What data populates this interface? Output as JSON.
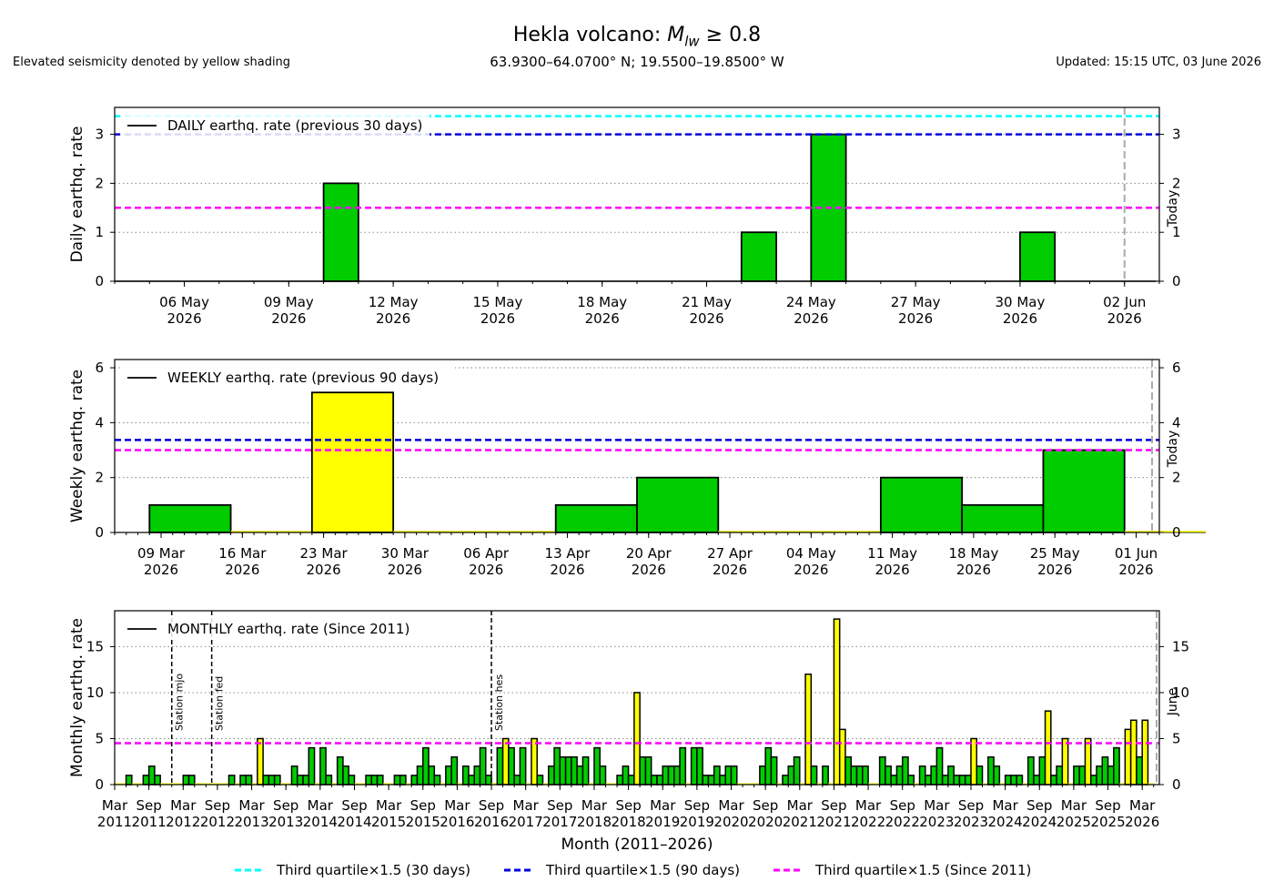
{
  "header": {
    "title": "Hekla volcano: M_lw ≥ 0.8",
    "title_main": "Hekla volcano: ",
    "title_math_M": "M",
    "title_math_sub": "lw",
    "title_math_rest": " ≥ 0.8",
    "coords": "63.9300–64.0700° N; 19.5500–19.8500° W",
    "note_left": "Elevated seismicity denoted by yellow shading",
    "note_right": "Updated: 15:15 UTC, 03 June 2026"
  },
  "colors": {
    "normal": "#00cc00",
    "elevated": "#ffff00",
    "cyan": "#00ffff",
    "blue": "#0000dd",
    "magenta": "#ff00ff",
    "today": "#aaaaaa",
    "station": "#000000"
  },
  "legend": [
    {
      "label": "Third quartile×1.5 (30 days)",
      "color": "#00ffff"
    },
    {
      "label": "Third quartile×1.5 (90 days)",
      "color": "#0000dd"
    },
    {
      "label": "Third quartile×1.5 (Since 2011)",
      "color": "#ff00ff"
    }
  ],
  "chart_data": [
    {
      "type": "bar",
      "legend_label": "DAILY earthq. rate (previous 30 days)",
      "ylabel": "Daily earthq. rate",
      "xlabel": "",
      "x_start": "2026-05-04",
      "x": [
        "2026-05-10",
        "2026-05-22",
        "2026-05-24",
        "2026-05-30"
      ],
      "values": [
        2,
        1,
        3,
        1
      ],
      "elevated": [
        false,
        false,
        false,
        false
      ],
      "xlim": [
        "2026-05-04",
        "2026-06-03"
      ],
      "ylim": [
        0,
        3.55
      ],
      "yticks": [
        0,
        1,
        2,
        3
      ],
      "xtick_labels": [
        [
          "06 May",
          "2026"
        ],
        [
          "09 May",
          "2026"
        ],
        [
          "12 May",
          "2026"
        ],
        [
          "15 May",
          "2026"
        ],
        [
          "18 May",
          "2026"
        ],
        [
          "21 May",
          "2026"
        ],
        [
          "24 May",
          "2026"
        ],
        [
          "27 May",
          "2026"
        ],
        [
          "30 May",
          "2026"
        ],
        [
          "02 Jun",
          "2026"
        ]
      ],
      "thresholds": [
        {
          "name": "30 days",
          "value": 3.37,
          "color": "#00ffff"
        },
        {
          "name": "90 days",
          "value": 3.0,
          "color": "#0000dd"
        },
        {
          "name": "Since 2011",
          "value": 1.5,
          "color": "#ff00ff"
        }
      ],
      "today_label": "Today",
      "grid": "y dotted"
    },
    {
      "type": "bar",
      "legend_label": "WEEKLY earthq. rate (previous 90 days)",
      "ylabel": "Weekly earthq. rate",
      "xlabel": "",
      "x_start": "2026-03-05",
      "week_starts": [
        "2026-03-08",
        "2026-03-15",
        "2026-03-22",
        "2026-03-29",
        "2026-04-05",
        "2026-04-12",
        "2026-04-19",
        "2026-04-26",
        "2026-05-03",
        "2026-05-10",
        "2026-05-17",
        "2026-05-24",
        "2026-05-31"
      ],
      "values": [
        1,
        0,
        5.1,
        0,
        0,
        1,
        2,
        0,
        0,
        2,
        1,
        3,
        0
      ],
      "elevated": [
        false,
        false,
        true,
        false,
        false,
        false,
        false,
        false,
        false,
        false,
        false,
        false,
        false
      ],
      "xlim": [
        "2026-03-05",
        "2026-06-03"
      ],
      "ylim": [
        0,
        6.3
      ],
      "yticks": [
        0,
        2,
        4,
        6
      ],
      "xtick_labels": [
        [
          "09 Mar",
          "2026"
        ],
        [
          "16 Mar",
          "2026"
        ],
        [
          "23 Mar",
          "2026"
        ],
        [
          "30 Mar",
          "2026"
        ],
        [
          "06 Apr",
          "2026"
        ],
        [
          "13 Apr",
          "2026"
        ],
        [
          "20 Apr",
          "2026"
        ],
        [
          "27 Apr",
          "2026"
        ],
        [
          "04 May",
          "2026"
        ],
        [
          "11 May",
          "2026"
        ],
        [
          "18 May",
          "2026"
        ],
        [
          "25 May",
          "2026"
        ],
        [
          "01 Jun",
          "2026"
        ]
      ],
      "thresholds": [
        {
          "name": "90 days",
          "value": 3.37,
          "color": "#0000dd"
        },
        {
          "name": "Since 2011",
          "value": 3.0,
          "color": "#ff00ff"
        }
      ],
      "today_label": "Today",
      "grid": "y dotted"
    },
    {
      "type": "bar",
      "legend_label": "MONTHLY earthq. rate (Since 2011)",
      "ylabel": "Monthly earthq. rate",
      "xlabel": "Month (2011–2026)",
      "x_start": "2011-03",
      "xlim": [
        "2011-03",
        "2026-06"
      ],
      "ylim": [
        0,
        18.9
      ],
      "yticks": [
        0,
        5,
        10,
        15
      ],
      "values": [
        0,
        0,
        1,
        0,
        0,
        1,
        2,
        1,
        0,
        0,
        0,
        0,
        1,
        1,
        0,
        0,
        0,
        0,
        0,
        0,
        1,
        0,
        1,
        1,
        0,
        5,
        1,
        1,
        1,
        0,
        0,
        2,
        1,
        1,
        4,
        0,
        4,
        1,
        0,
        3,
        2,
        1,
        0,
        0,
        1,
        1,
        1,
        0,
        0,
        1,
        1,
        0,
        1,
        2,
        4,
        2,
        1,
        0,
        2,
        3,
        0,
        2,
        1,
        2,
        4,
        1,
        0,
        4,
        5,
        4,
        1,
        4,
        0,
        5,
        1,
        0,
        2,
        4,
        3,
        3,
        3,
        2,
        3,
        0,
        4,
        2,
        0,
        0,
        1,
        2,
        1,
        10,
        3,
        3,
        1,
        1,
        2,
        2,
        2,
        4,
        0,
        4,
        4,
        1,
        1,
        2,
        1,
        2,
        2,
        0,
        0,
        0,
        0,
        2,
        4,
        3,
        0,
        1,
        2,
        3,
        0,
        12,
        2,
        0,
        2,
        0,
        18,
        6,
        3,
        2,
        2,
        2,
        0,
        0,
        3,
        2,
        1,
        2,
        3,
        1,
        0,
        2,
        1,
        2,
        4,
        1,
        2,
        1,
        1,
        1,
        5,
        2,
        0,
        3,
        2,
        0,
        1,
        1,
        1,
        0,
        3,
        1,
        3,
        8,
        1,
        2,
        5,
        0,
        2,
        2,
        5,
        1,
        2,
        3,
        2,
        4,
        0,
        6,
        7,
        3,
        7,
        0
      ],
      "elevated": [
        true,
        true,
        false,
        true,
        true,
        false,
        false,
        false,
        true,
        true,
        true,
        true,
        false,
        false,
        true,
        true,
        true,
        true,
        true,
        true,
        false,
        true,
        false,
        false,
        true,
        true,
        false,
        false,
        false,
        true,
        true,
        false,
        false,
        false,
        false,
        true,
        false,
        false,
        true,
        false,
        false,
        false,
        true,
        true,
        false,
        false,
        false,
        true,
        true,
        false,
        false,
        true,
        false,
        false,
        false,
        false,
        false,
        true,
        false,
        false,
        true,
        false,
        false,
        false,
        false,
        false,
        true,
        false,
        true,
        false,
        false,
        false,
        true,
        true,
        false,
        true,
        false,
        false,
        false,
        false,
        false,
        false,
        false,
        true,
        false,
        false,
        true,
        true,
        false,
        false,
        false,
        true,
        false,
        false,
        false,
        false,
        false,
        false,
        false,
        false,
        true,
        false,
        false,
        false,
        false,
        false,
        false,
        false,
        false,
        true,
        true,
        true,
        true,
        false,
        false,
        false,
        true,
        false,
        false,
        false,
        true,
        true,
        false,
        true,
        false,
        true,
        true,
        true,
        false,
        false,
        false,
        false,
        true,
        true,
        false,
        false,
        false,
        false,
        false,
        false,
        true,
        false,
        false,
        false,
        false,
        false,
        false,
        false,
        false,
        false,
        true,
        false,
        true,
        false,
        false,
        true,
        false,
        false,
        false,
        true,
        false,
        false,
        false,
        true,
        false,
        false,
        true,
        true,
        false,
        false,
        true,
        false,
        false,
        false,
        false,
        false,
        true,
        true,
        true,
        false,
        true,
        true
      ],
      "xtick_labels": [
        [
          "Mar",
          "2011"
        ],
        [
          "Sep",
          "2011"
        ],
        [
          "Mar",
          "2012"
        ],
        [
          "Sep",
          "2012"
        ],
        [
          "Mar",
          "2013"
        ],
        [
          "Sep",
          "2013"
        ],
        [
          "Mar",
          "2014"
        ],
        [
          "Sep",
          "2014"
        ],
        [
          "Mar",
          "2015"
        ],
        [
          "Sep",
          "2015"
        ],
        [
          "Mar",
          "2016"
        ],
        [
          "Sep",
          "2016"
        ],
        [
          "Mar",
          "2017"
        ],
        [
          "Sep",
          "2017"
        ],
        [
          "Mar",
          "2018"
        ],
        [
          "Sep",
          "2018"
        ],
        [
          "Mar",
          "2019"
        ],
        [
          "Sep",
          "2019"
        ],
        [
          "Mar",
          "2020"
        ],
        [
          "Sep",
          "2020"
        ],
        [
          "Mar",
          "2021"
        ],
        [
          "Sep",
          "2021"
        ],
        [
          "Mar",
          "2022"
        ],
        [
          "Sep",
          "2022"
        ],
        [
          "Mar",
          "2023"
        ],
        [
          "Sep",
          "2023"
        ],
        [
          "Mar",
          "2024"
        ],
        [
          "Sep",
          "2024"
        ],
        [
          "Mar",
          "2025"
        ],
        [
          "Sep",
          "2025"
        ],
        [
          "Mar",
          "2026"
        ]
      ],
      "thresholds": [
        {
          "name": "Since 2011",
          "value": 4.5,
          "color": "#ff00ff"
        }
      ],
      "stations": [
        {
          "label": "Station mjo",
          "month": "2012-01"
        },
        {
          "label": "Station fed",
          "month": "2012-08"
        },
        {
          "label": "Station hes",
          "month": "2016-09"
        }
      ],
      "today_label": "June",
      "grid": "y dotted"
    }
  ]
}
